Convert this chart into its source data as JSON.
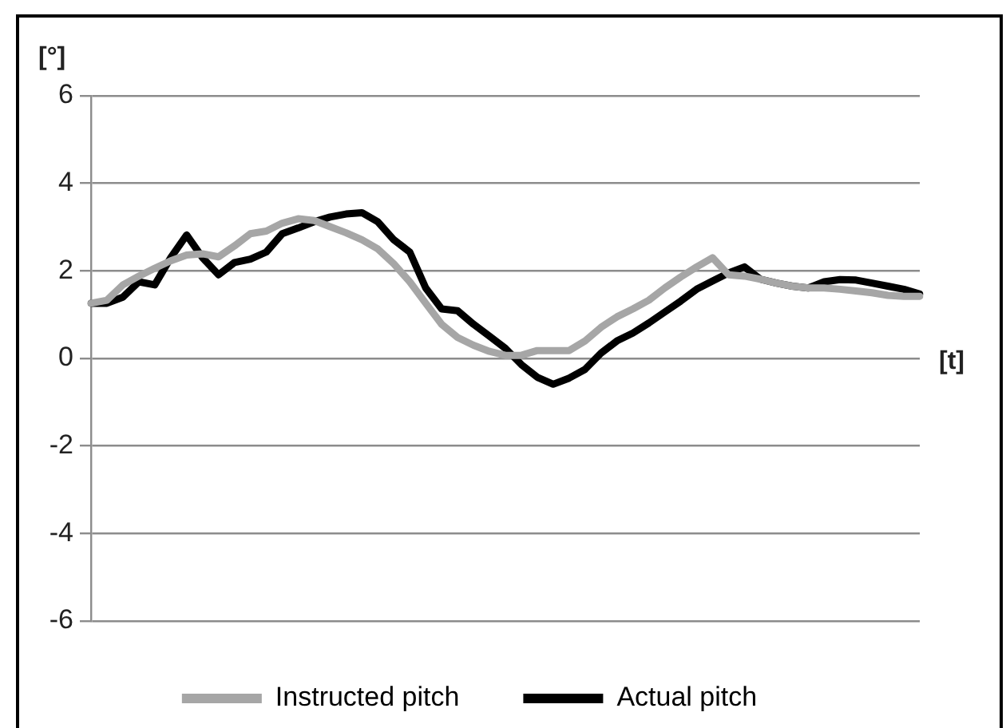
{
  "chart_data": {
    "type": "line",
    "xlabel": "[t]",
    "ylabel": "[°]",
    "categories": [
      null,
      null,
      null,
      null,
      null,
      null,
      null,
      null,
      null,
      null,
      null,
      null,
      null,
      null,
      null,
      null,
      null,
      null,
      null,
      null,
      null,
      null,
      null,
      null,
      null,
      null,
      null,
      null,
      null,
      null,
      null,
      null,
      null,
      null,
      null,
      null,
      null,
      null,
      null,
      null,
      null,
      null,
      null,
      null,
      null,
      null,
      null,
      null,
      null,
      null,
      null,
      null,
      null
    ],
    "ylim": [
      -6,
      6
    ],
    "yticks": [
      -6,
      -4,
      -2,
      0,
      2,
      4,
      6
    ],
    "grid": "y",
    "legend": "bottom",
    "marker": "none",
    "line_style": "solid",
    "tick_labels": "y",
    "series": [
      {
        "name": "Instructed pitch",
        "color": "#a6a6a6",
        "values": [
          1.26,
          1.33,
          1.68,
          1.88,
          2.06,
          2.23,
          2.36,
          2.39,
          2.32,
          2.57,
          2.85,
          2.91,
          3.09,
          3.19,
          3.15,
          3.01,
          2.87,
          2.71,
          2.5,
          2.16,
          1.75,
          1.26,
          0.78,
          0.48,
          0.3,
          0.16,
          0.07,
          0.07,
          0.18,
          0.18,
          0.18,
          0.4,
          0.71,
          0.95,
          1.13,
          1.33,
          1.61,
          1.86,
          2.09,
          2.3,
          1.91,
          1.88,
          1.81,
          1.72,
          1.65,
          1.61,
          1.61,
          1.58,
          1.54,
          1.5,
          1.44,
          1.42,
          1.42
        ]
      },
      {
        "name": "Actual pitch",
        "color": "#000000",
        "values": [
          1.26,
          1.26,
          1.4,
          1.75,
          1.68,
          2.3,
          2.82,
          2.3,
          1.91,
          2.19,
          2.27,
          2.43,
          2.85,
          2.98,
          3.12,
          3.23,
          3.3,
          3.33,
          3.12,
          2.71,
          2.43,
          1.61,
          1.13,
          1.09,
          0.78,
          0.51,
          0.23,
          -0.14,
          -0.43,
          -0.59,
          -0.45,
          -0.25,
          0.12,
          0.4,
          0.58,
          0.81,
          1.06,
          1.31,
          1.58,
          1.77,
          1.95,
          2.09,
          1.81,
          1.72,
          1.65,
          1.61,
          1.75,
          1.8,
          1.79,
          1.72,
          1.65,
          1.58,
          1.47
        ]
      }
    ]
  }
}
